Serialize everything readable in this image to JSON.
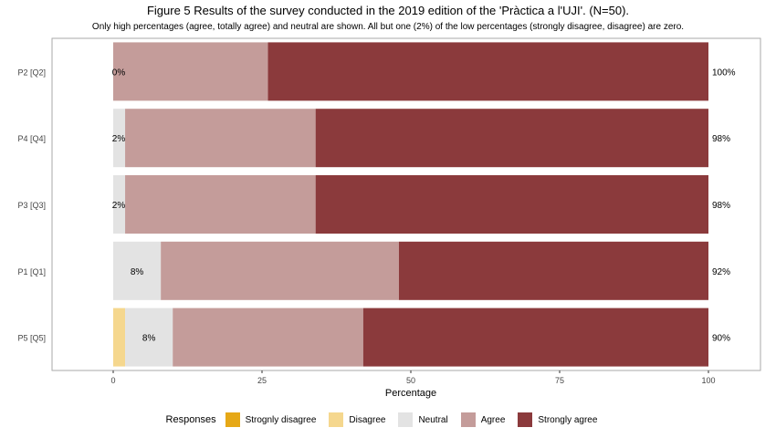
{
  "chart_data": {
    "type": "bar",
    "orientation": "horizontal",
    "stacked": true,
    "title": "Figure 5 Results of the survey conducted in the 2019 edition of the 'Pràctica a l'UJI'. (N=50).",
    "subtitle": "Only high percentages (agree, totally agree) and neutral are shown. All but one (2%) of the low percentages (strongly disagree, disagree) are zero.",
    "xlabel": "Percentage",
    "ylabel": "",
    "xlim": [
      0,
      100
    ],
    "xticks": [
      "0",
      "25",
      "50",
      "75",
      "100"
    ],
    "categories": [
      "P2 [Q2]",
      "P4 [Q4]",
      "P3 [Q3]",
      "P1 [Q1]",
      "P5 [Q5]"
    ],
    "series": [
      {
        "name": "Strognly disagree",
        "color": "#E6A817",
        "values": [
          0,
          0,
          0,
          0,
          0
        ]
      },
      {
        "name": "Disagree",
        "color": "#F5D78E",
        "values": [
          0,
          0,
          0,
          0,
          2
        ]
      },
      {
        "name": "Neutral",
        "color": "#E3E3E3",
        "values": [
          0,
          2,
          2,
          8,
          8
        ]
      },
      {
        "name": "Agree",
        "color": "#C49C9A",
        "values": [
          26,
          32,
          32,
          40,
          32
        ]
      },
      {
        "name": "Strongly agree",
        "color": "#8B3A3C",
        "values": [
          74,
          66,
          66,
          52,
          58
        ]
      }
    ],
    "left_labels": [
      "0%",
      "2%",
      "2%",
      "8%",
      "8%"
    ],
    "right_labels": [
      "100%",
      "98%",
      "98%",
      "92%",
      "90%"
    ],
    "legend_title": "Responses",
    "legend_position": "bottom",
    "grid": false
  }
}
